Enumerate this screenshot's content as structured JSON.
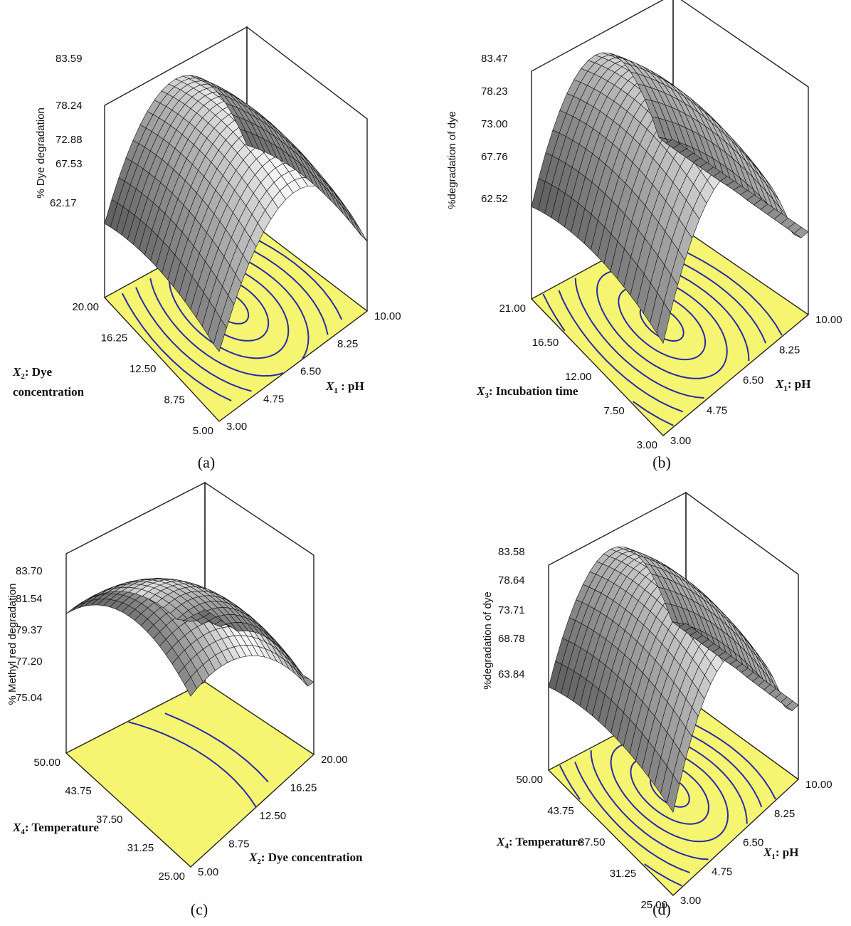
{
  "chart_data": [
    {
      "type": "surface",
      "panel_label": "(a)",
      "zlabel": "% Dye degradation",
      "z_ticks": [
        "83.59",
        "78.24",
        "72.88",
        "67.53",
        "62.17"
      ],
      "zlim": [
        62.17,
        83.59
      ],
      "x_axis": {
        "var": "X",
        "sub": "1",
        "name": " : pH",
        "ticks": [
          "3.00",
          "4.75",
          "6.50",
          "8.25",
          "10.00"
        ]
      },
      "y_axis": {
        "var": "X",
        "sub": "2",
        "name": ": Dye",
        "name2": "concentration",
        "ticks": [
          "5.00",
          "8.75",
          "12.50",
          "16.25",
          "20.00"
        ]
      },
      "contour_color": "#2a2aa8",
      "floor_color": "#f5f571"
    },
    {
      "type": "surface",
      "panel_label": "(b)",
      "zlabel": "%degradation of dye",
      "z_ticks": [
        "83.47",
        "78.23",
        "73.00",
        "67.76",
        "62.52"
      ],
      "zlim": [
        62.52,
        83.47
      ],
      "x_axis": {
        "var": "X",
        "sub": "1",
        "name": ": pH",
        "ticks": [
          "3.00",
          "4.75",
          "6.50",
          "8.25",
          "10.00"
        ]
      },
      "y_axis": {
        "var": "X",
        "sub": "3",
        "name": ": Incubation time",
        "ticks": [
          "3.00",
          "7.50",
          "12.00",
          "16.50",
          "21.00"
        ]
      },
      "contour_color": "#2a2aa8",
      "floor_color": "#f5f571"
    },
    {
      "type": "surface",
      "panel_label": "(c)",
      "zlabel": "% Methyl red degradation",
      "z_ticks": [
        "83.70",
        "81.54",
        "79.37",
        "77.20",
        "75.04"
      ],
      "zlim": [
        75.04,
        83.7
      ],
      "x_axis": {
        "var": "X",
        "sub": "2",
        "name": ": Dye concentration",
        "ticks": [
          "5.00",
          "8.75",
          "12.50",
          "16.25",
          "20.00"
        ]
      },
      "y_axis": {
        "var": "X",
        "sub": "4",
        "name": ": Temperature",
        "ticks": [
          "25.00",
          "31.25",
          "37.50",
          "43.75",
          "50.00"
        ]
      },
      "contour_color": "#2a2aa8",
      "floor_color": "#f5f571"
    },
    {
      "type": "surface",
      "panel_label": "(d)",
      "zlabel": "%degradation of dye",
      "z_ticks": [
        "83.58",
        "78.64",
        "73.71",
        "68.78",
        "63.84"
      ],
      "zlim": [
        63.84,
        83.58
      ],
      "x_axis": {
        "var": "X",
        "sub": "1",
        "name": ": pH",
        "ticks": [
          "3.00",
          "4.75",
          "6.50",
          "8.25",
          "10.00"
        ]
      },
      "y_axis": {
        "var": "X",
        "sub": "4",
        "name": ": Temperature",
        "ticks": [
          "25.00",
          "31.25",
          "37.50",
          "43.75",
          "50.00"
        ]
      },
      "contour_color": "#2a2aa8",
      "floor_color": "#f5f571"
    }
  ]
}
